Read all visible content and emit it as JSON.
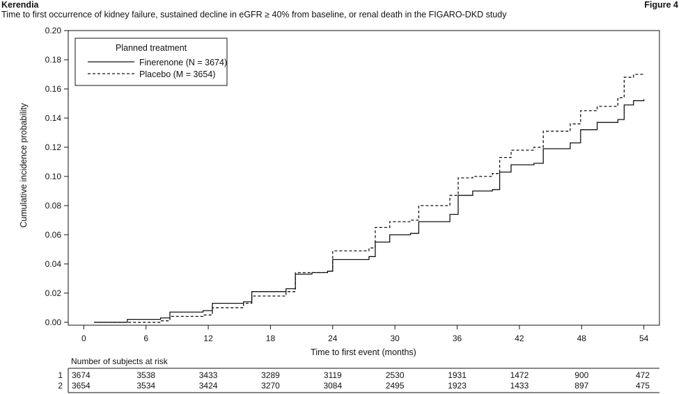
{
  "header": {
    "brand": "Kerendia",
    "figure_label": "Figure 4",
    "subtitle": "Time to first occurrence of kidney failure, sustained decline in eGFR ≥ 40% from baseline, or renal death in the FIGARO-DKD study"
  },
  "chart_data": {
    "type": "line",
    "title": "",
    "xlabel": "Time to first event (months)",
    "ylabel": "Cumulative incidence probability",
    "xlim": [
      -1.5,
      55.5
    ],
    "ylim": [
      -0.002,
      0.2
    ],
    "x_ticks": [
      0,
      6,
      12,
      18,
      24,
      30,
      36,
      42,
      48,
      54
    ],
    "y_ticks": [
      0.0,
      0.02,
      0.04,
      0.06,
      0.08,
      0.1,
      0.12,
      0.14,
      0.16,
      0.18,
      0.2
    ],
    "y_tick_labels": [
      "0.00",
      "0.02",
      "0.04",
      "0.06",
      "0.08",
      "0.10",
      "0.12",
      "0.14",
      "0.16",
      "0.18",
      "0.20"
    ],
    "legend": {
      "title": "Planned treatment",
      "placement": "top-left"
    },
    "series": [
      {
        "name": "Finerenone (N = 3674)",
        "style": "solid",
        "step": true,
        "points": [
          [
            1,
            0
          ],
          [
            3.6,
            0
          ],
          [
            4.2,
            0.002
          ],
          [
            7.4,
            0.003
          ],
          [
            8.3,
            0.007
          ],
          [
            11.5,
            0.008
          ],
          [
            12.4,
            0.013
          ],
          [
            15.4,
            0.014
          ],
          [
            16.2,
            0.021
          ],
          [
            19.5,
            0.023
          ],
          [
            20.4,
            0.033
          ],
          [
            22,
            0.034
          ],
          [
            23.5,
            0.035
          ],
          [
            24,
            0.043
          ],
          [
            27.5,
            0.045
          ],
          [
            28.1,
            0.055
          ],
          [
            29.5,
            0.06
          ],
          [
            31.5,
            0.061
          ],
          [
            32.3,
            0.069
          ],
          [
            35.3,
            0.074
          ],
          [
            36.1,
            0.087
          ],
          [
            37.5,
            0.09
          ],
          [
            39.4,
            0.091
          ],
          [
            40.1,
            0.103
          ],
          [
            41.2,
            0.108
          ],
          [
            43.4,
            0.109
          ],
          [
            44.3,
            0.119
          ],
          [
            46.9,
            0.123
          ],
          [
            47.9,
            0.132
          ],
          [
            49.5,
            0.137
          ],
          [
            51.5,
            0.139
          ],
          [
            52.1,
            0.149
          ],
          [
            53,
            0.152
          ],
          [
            54,
            0.153
          ]
        ]
      },
      {
        "name": "Placebo (M = 3654)",
        "style": "dashed",
        "step": true,
        "points": [
          [
            1,
            0
          ],
          [
            3.6,
            0
          ],
          [
            4.2,
            0
          ],
          [
            7.4,
            0.001
          ],
          [
            8.3,
            0.004
          ],
          [
            11.5,
            0.005
          ],
          [
            12.4,
            0.01
          ],
          [
            15.4,
            0.013
          ],
          [
            16.2,
            0.018
          ],
          [
            19.5,
            0.021
          ],
          [
            20.4,
            0.034
          ],
          [
            22,
            0.034
          ],
          [
            23.5,
            0.035
          ],
          [
            24,
            0.049
          ],
          [
            27.5,
            0.051
          ],
          [
            28.1,
            0.065
          ],
          [
            29.5,
            0.069
          ],
          [
            31.5,
            0.07
          ],
          [
            32.3,
            0.08
          ],
          [
            35.3,
            0.087
          ],
          [
            36.1,
            0.099
          ],
          [
            37.5,
            0.1
          ],
          [
            39.4,
            0.102
          ],
          [
            40.1,
            0.113
          ],
          [
            41.2,
            0.118
          ],
          [
            43.4,
            0.12
          ],
          [
            44.3,
            0.131
          ],
          [
            46.9,
            0.136
          ],
          [
            47.9,
            0.145
          ],
          [
            49.5,
            0.148
          ],
          [
            51.5,
            0.154
          ],
          [
            52.1,
            0.168
          ],
          [
            53,
            0.17
          ],
          [
            54,
            0.17
          ]
        ]
      }
    ],
    "risk_table": {
      "title": "Number of subjects at risk",
      "times": [
        0,
        6,
        12,
        18,
        24,
        30,
        36,
        42,
        48,
        54
      ],
      "rows": [
        {
          "label": "1",
          "values": [
            "3674",
            "3538",
            "3433",
            "3289",
            "3119",
            "2530",
            "1931",
            "1472",
            "900",
            "472"
          ]
        },
        {
          "label": "2",
          "values": [
            "3654",
            "3534",
            "3424",
            "3270",
            "3084",
            "2495",
            "1923",
            "1433",
            "897",
            "475"
          ]
        }
      ]
    }
  }
}
